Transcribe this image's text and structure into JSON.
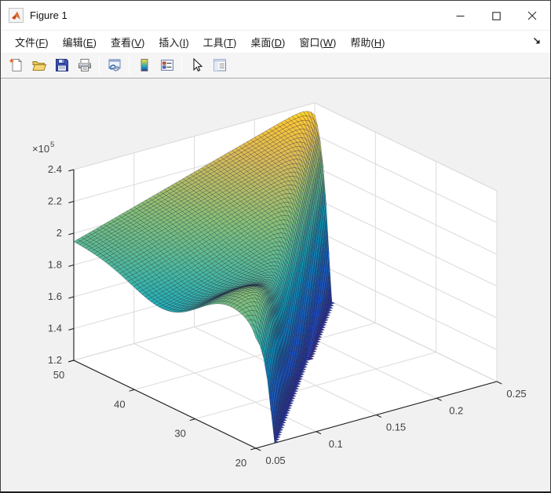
{
  "window": {
    "title": "Figure 1"
  },
  "titlebar": {
    "minimize_label": "minimize",
    "maximize_label": "maximize",
    "close_label": "close"
  },
  "menu": {
    "items": [
      {
        "id": "file",
        "pre": "文件(",
        "accel": "F",
        "post": ")"
      },
      {
        "id": "edit",
        "pre": "编辑(",
        "accel": "E",
        "post": ")"
      },
      {
        "id": "view",
        "pre": "查看(",
        "accel": "V",
        "post": ")"
      },
      {
        "id": "insert",
        "pre": "插入(",
        "accel": "I",
        "post": ")"
      },
      {
        "id": "tools",
        "pre": "工具(",
        "accel": "T",
        "post": ")"
      },
      {
        "id": "desktop",
        "pre": "桌面(",
        "accel": "D",
        "post": ")"
      },
      {
        "id": "window",
        "pre": "窗口(",
        "accel": "W",
        "post": ")"
      },
      {
        "id": "help",
        "pre": "帮助(",
        "accel": "H",
        "post": ")"
      }
    ]
  },
  "toolbar": {
    "buttons": [
      {
        "name": "new-figure",
        "icon": "new-document-icon"
      },
      {
        "name": "open-file",
        "icon": "open-folder-icon"
      },
      {
        "name": "save-figure",
        "icon": "save-floppy-icon"
      },
      {
        "name": "print-figure",
        "icon": "printer-icon"
      },
      {
        "name": "link-plot",
        "icon": "link-plot-icon"
      },
      {
        "name": "insert-colorbar",
        "icon": "colorbar-icon"
      },
      {
        "name": "insert-legend",
        "icon": "legend-icon"
      },
      {
        "name": "edit-plot",
        "icon": "cursor-arrow-icon"
      },
      {
        "name": "property-inspector",
        "icon": "property-inspector-icon"
      }
    ]
  },
  "chart_data": {
    "type": "surface",
    "title": "",
    "x_axis": {
      "range": [
        0.05,
        0.25
      ],
      "ticks": [
        0.05,
        0.1,
        0.15,
        0.2,
        0.25
      ],
      "tick_labels": [
        "0.05",
        "0.1",
        "0.15",
        "0.2",
        "0.25"
      ]
    },
    "y_axis": {
      "range": [
        20,
        50
      ],
      "ticks": [
        20,
        30,
        40,
        50
      ],
      "tick_labels": [
        "20",
        "30",
        "40",
        "50"
      ]
    },
    "z_axis": {
      "range": [
        120000,
        240000
      ],
      "ticks": [
        1.2,
        1.4,
        1.6,
        1.8,
        2.0,
        2.2,
        2.4
      ],
      "tick_labels": [
        "1.2",
        "1.4",
        "1.6",
        "1.8",
        "2",
        "2.2",
        "2.4"
      ],
      "exponent_mantissa": "×10",
      "exponent_power": "5"
    },
    "grid": true,
    "view": {
      "azimuth": -37.5,
      "elevation": 30
    },
    "colormap": "parula",
    "colormap_stops": [
      [
        0.0,
        53,
        42,
        135
      ],
      [
        0.14,
        28,
        83,
        216
      ],
      [
        0.29,
        18,
        129,
        214
      ],
      [
        0.43,
        7,
        166,
        198
      ],
      [
        0.57,
        70,
        184,
        160
      ],
      [
        0.71,
        134,
        193,
        119
      ],
      [
        0.86,
        219,
        187,
        87
      ],
      [
        0.95,
        253,
        199,
        52
      ],
      [
        1.0,
        249,
        251,
        14
      ]
    ],
    "mesh_resolution": 64,
    "surface_model": {
      "description": "Analytic approximation (z in units of 1e5) of the plotted surface; clipped below z=1.2",
      "base": 1.9,
      "y_tilt": 0.05,
      "x_gain": 0.45,
      "x_gain_y_mix": [
        0.25,
        0.75
      ],
      "hump": {
        "amp": 0.16,
        "cx": 0.1,
        "cy": 0.16,
        "sx": 0.045,
        "sy": 0.045
      },
      "valley": {
        "amp": 0.14,
        "sx": 0.25,
        "cy": 0.5,
        "sy": 0.065
      },
      "cliff": {
        "amp": 2.8,
        "offset": 0.1,
        "width": 0.028
      },
      "clip_z": 1.2,
      "z_display_min": 1.2,
      "z_display_max": 2.4
    }
  }
}
